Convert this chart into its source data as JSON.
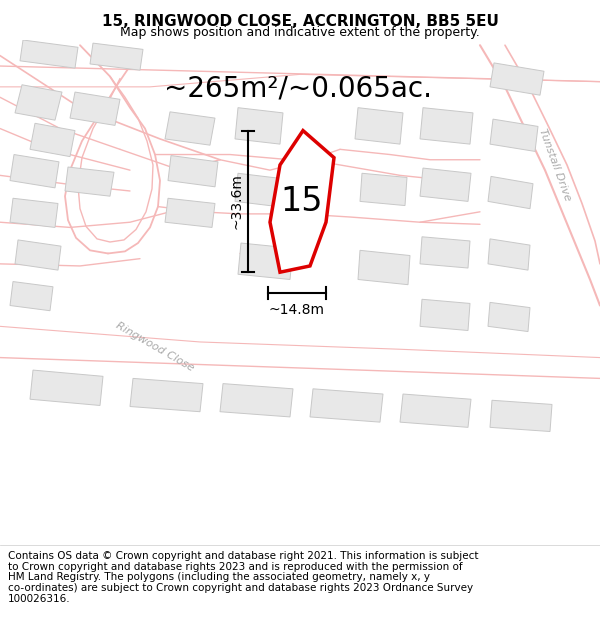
{
  "title": "15, RINGWOOD CLOSE, ACCRINGTON, BB5 5EU",
  "subtitle": "Map shows position and indicative extent of the property.",
  "area_label": "~265m²/~0.065ac.",
  "property_number": "15",
  "dim_height": "~33.6m",
  "dim_width": "~14.8m",
  "road_label_1": "Ringwood Close",
  "road_label_2": "Tunstall Drive",
  "footer_lines": [
    "Contains OS data © Crown copyright and database right 2021. This information is subject",
    "to Crown copyright and database rights 2023 and is reproduced with the permission of",
    "HM Land Registry. The polygons (including the associated geometry, namely x, y",
    "co-ordinates) are subject to Crown copyright and database rights 2023 Ordnance Survey",
    "100026316."
  ],
  "map_bg": "#ffffff",
  "road_color": "#f5b8b8",
  "road_fill": "#fef0f0",
  "building_color": "#e8e8e8",
  "building_edge": "#c8c8c8",
  "highlight_color": "#dd0000",
  "title_fontsize": 11,
  "subtitle_fontsize": 9,
  "area_fontsize": 20,
  "number_fontsize": 24,
  "dim_fontsize": 10,
  "road_label_fontsize": 8,
  "footer_fontsize": 7.5
}
